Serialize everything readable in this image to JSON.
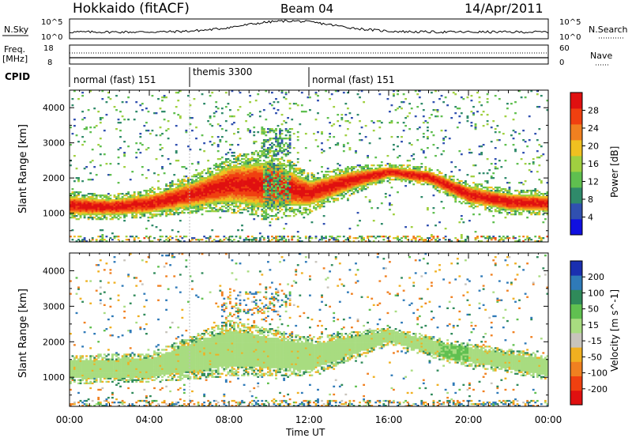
{
  "header": {
    "station": "Hokkaido (fitACF)",
    "beam": "Beam 04",
    "date": "14/Apr/2011"
  },
  "panels": {
    "nsky": {
      "label_left": "N.Sky",
      "label_right": "N.Search",
      "tick_top_left": "10^5",
      "tick_bottom_left": "10^0",
      "tick_top_right": "10^5",
      "tick_bottom_right": "10^0"
    },
    "freq": {
      "label_left_1": "Freq.",
      "label_left_2": "[MHz]",
      "label_right": "Nave",
      "tick_top_left": "18",
      "tick_bottom_left": "8",
      "tick_top_right": "60",
      "tick_bottom_right": "0"
    },
    "cpid": {
      "label": "CPID",
      "modes": [
        {
          "name": "normal (fast) 151",
          "start_hour": 0,
          "end_hour": 6
        },
        {
          "name": "themis 3300",
          "start_hour": 6,
          "end_hour": 12
        },
        {
          "name": "normal (fast) 151",
          "start_hour": 12,
          "end_hour": 24
        }
      ]
    }
  },
  "power_colorbar": {
    "title": "Power [dB]",
    "ticks": [
      "4",
      "8",
      "12",
      "16",
      "20",
      "24",
      "28"
    ],
    "colors": [
      "#1010e0",
      "#3050b0",
      "#2f8a6a",
      "#5fbf4f",
      "#a0d040",
      "#f0c020",
      "#f08020",
      "#f04010",
      "#e01010"
    ]
  },
  "velocity_colorbar": {
    "title": "Velocity [m s^-1]",
    "ticks": [
      "200",
      "100",
      "50",
      "15",
      "-15",
      "-50",
      "-100",
      "-200"
    ],
    "colors": [
      "#1a2fb0",
      "#2f7ab8",
      "#2f8a5a",
      "#60c050",
      "#a8dc80",
      "#c8c4bc",
      "#f0b020",
      "#f08020",
      "#f04010",
      "#e01010"
    ]
  },
  "axes": {
    "ylabel": "Slant Range [km]",
    "xlabel": "Time UT",
    "x_ticks": [
      "00:00",
      "04:00",
      "08:00",
      "12:00",
      "16:00",
      "20:00",
      "00:00"
    ],
    "y_ticks": [
      "1000",
      "2000",
      "3000",
      "4000"
    ]
  },
  "chart_data": [
    {
      "type": "heatmap",
      "title": "Power [dB]",
      "xlabel": "Time UT",
      "ylabel": "Slant Range [km]",
      "xlim": [
        0,
        24
      ],
      "ylim": [
        180,
        4500
      ],
      "clim": [
        0,
        30
      ],
      "echo_band": [
        {
          "hour": 0,
          "center_km": 1200,
          "half_width_km": 250,
          "peak_db": 27
        },
        {
          "hour": 2,
          "center_km": 1150,
          "half_width_km": 220,
          "peak_db": 27
        },
        {
          "hour": 4,
          "center_km": 1250,
          "half_width_km": 260,
          "peak_db": 28
        },
        {
          "hour": 6,
          "center_km": 1500,
          "half_width_km": 320,
          "peak_db": 28
        },
        {
          "hour": 8,
          "center_km": 1800,
          "half_width_km": 500,
          "peak_db": 28
        },
        {
          "hour": 10,
          "center_km": 1800,
          "half_width_km": 650,
          "peak_db": 24
        },
        {
          "hour": 12,
          "center_km": 1550,
          "half_width_km": 350,
          "peak_db": 28
        },
        {
          "hour": 14,
          "center_km": 1900,
          "half_width_km": 260,
          "peak_db": 28
        },
        {
          "hour": 16,
          "center_km": 2150,
          "half_width_km": 150,
          "peak_db": 28
        },
        {
          "hour": 18,
          "center_km": 2000,
          "half_width_km": 180,
          "peak_db": 28
        },
        {
          "hour": 20,
          "center_km": 1500,
          "half_width_km": 230,
          "peak_db": 28
        },
        {
          "hour": 22,
          "center_km": 1300,
          "half_width_km": 230,
          "peak_db": 28
        },
        {
          "hour": 24,
          "center_km": 1250,
          "half_width_km": 220,
          "peak_db": 28
        }
      ]
    },
    {
      "type": "heatmap",
      "title": "Velocity [m s^-1]",
      "xlabel": "Time UT",
      "ylabel": "Slant Range [km]",
      "xlim": [
        0,
        24
      ],
      "ylim": [
        180,
        4500
      ],
      "clim": [
        -200,
        200
      ],
      "echo_band": [
        {
          "hour": 0,
          "center_km": 1200,
          "half_width_km": 250,
          "velocity": 0
        },
        {
          "hour": 4,
          "center_km": 1250,
          "half_width_km": 260,
          "velocity": 0
        },
        {
          "hour": 8,
          "center_km": 1800,
          "half_width_km": 500,
          "velocity": 0
        },
        {
          "hour": 12,
          "center_km": 1550,
          "half_width_km": 350,
          "velocity": 0
        },
        {
          "hour": 16,
          "center_km": 2150,
          "half_width_km": 150,
          "velocity": 0
        },
        {
          "hour": 19,
          "center_km": 1700,
          "half_width_km": 200,
          "velocity": 30
        },
        {
          "hour": 24,
          "center_km": 1250,
          "half_width_km": 220,
          "velocity": 0
        }
      ]
    }
  ]
}
